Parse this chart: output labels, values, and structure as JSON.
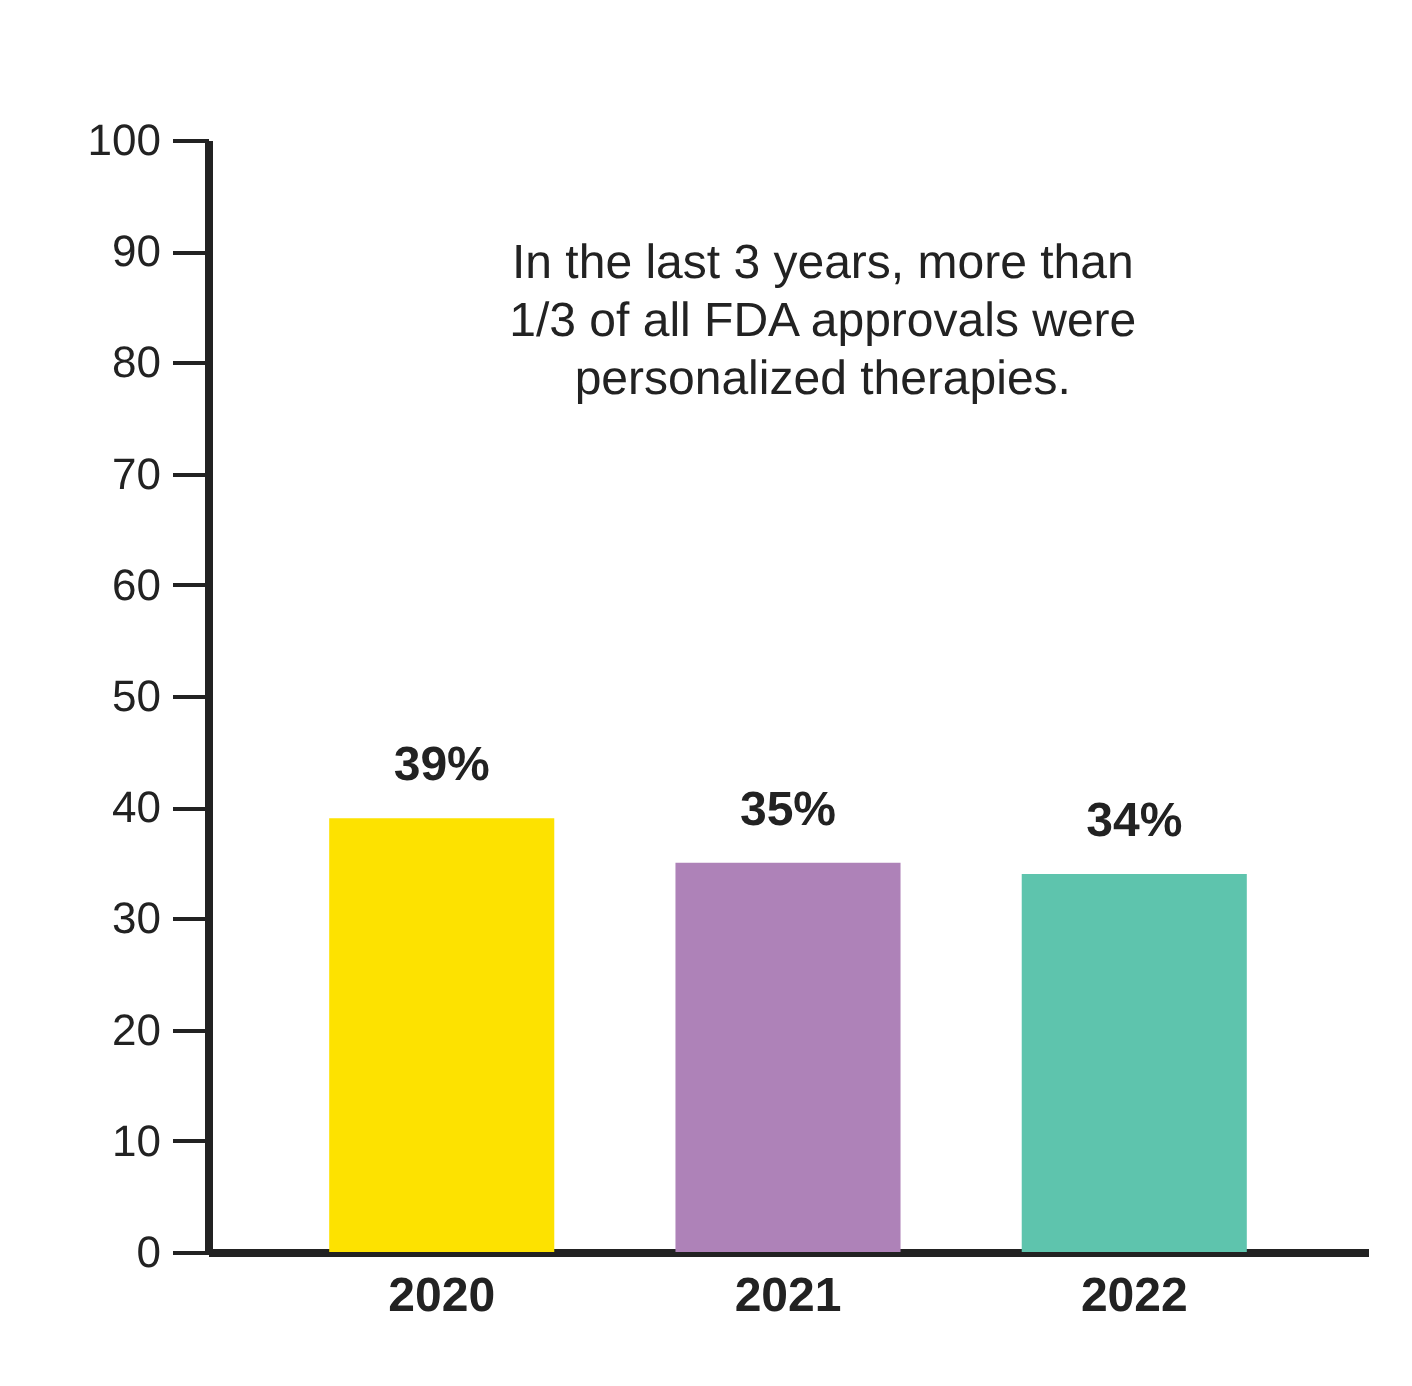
{
  "chart_data": {
    "type": "bar",
    "categories": [
      "2020",
      "2021",
      "2022"
    ],
    "values": [
      39,
      35,
      34
    ],
    "colors": [
      "#fde200",
      "#ae82b8",
      "#5ec4ad"
    ],
    "value_labels": [
      "39%",
      "35%",
      "34%"
    ],
    "ylim": [
      0,
      100
    ],
    "yticks": [
      0,
      10,
      20,
      30,
      40,
      50,
      60,
      70,
      80,
      90,
      100
    ],
    "grid": false,
    "annotations": [
      "In the last 3 years, more than 1/3 of all FDA approvals were personalized therapies."
    ]
  }
}
